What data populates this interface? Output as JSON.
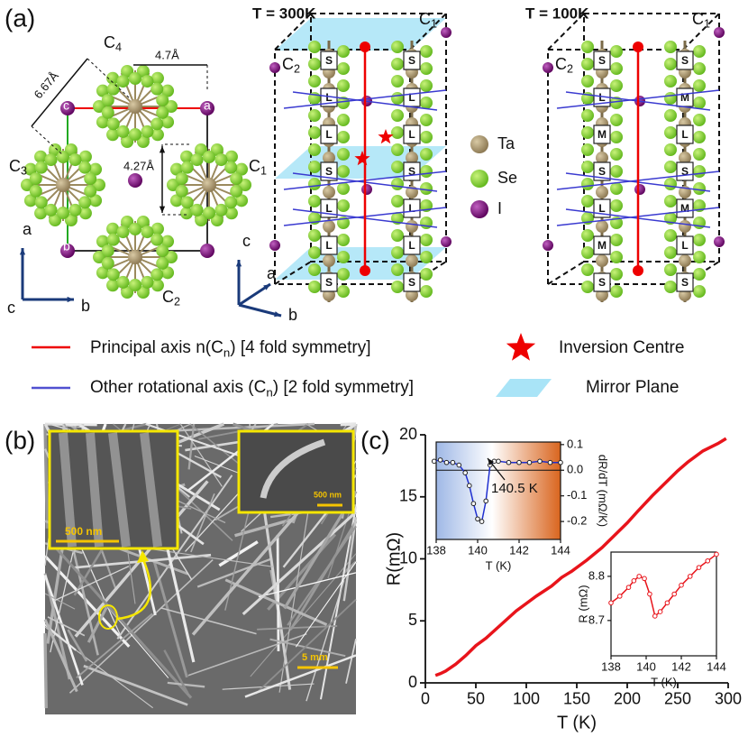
{
  "panel_a": {
    "label": "(a)",
    "left": {
      "c4": {
        "text": "C",
        "sub": "4"
      },
      "c3": {
        "text": "C",
        "sub": "3"
      },
      "c1": {
        "text": "C",
        "sub": "1"
      },
      "c2": {
        "text": "C",
        "sub": "2"
      },
      "d_b": "4.7Å",
      "d_diag": "6.67Å",
      "d_a": "4.27Å",
      "atom_c": "c",
      "atom_a": "a",
      "atom_b": "b",
      "axis_a": "a",
      "axis_b": "b",
      "axis_c": "c"
    },
    "s300": {
      "title": "T = 300K",
      "c1": {
        "text": "C",
        "sub": "1"
      },
      "c2": {
        "text": "C",
        "sub": "2"
      },
      "chains": [
        [
          "S",
          "L",
          "L",
          "S",
          "L",
          "L",
          "S"
        ],
        [
          "S",
          "L",
          "L",
          "S",
          "L",
          "L",
          "S"
        ]
      ],
      "axis_a": "a",
      "axis_b": "b",
      "axis_c": "c"
    },
    "s100": {
      "title": "T = 100K",
      "c1": {
        "text": "C",
        "sub": "1"
      },
      "c2": {
        "text": "C",
        "sub": "2"
      },
      "chains": [
        [
          "S",
          "L",
          "M",
          "S",
          "L",
          "M",
          "S"
        ],
        [
          "S",
          "M",
          "L",
          "S",
          "M",
          "L",
          "S"
        ]
      ]
    },
    "atoms": [
      "Ta",
      "Se",
      "I"
    ],
    "legend": {
      "principal": {
        "text": "Principal axis n(C",
        "sub": "n",
        "rest": ") [4 fold symmetry]"
      },
      "other": {
        "text": "Other rotational axis (C",
        "sub": "n",
        "rest": ") [2 fold symmetry]"
      },
      "inversion": "Inversion Centre",
      "mirror": "Mirror Plane"
    }
  },
  "panel_b": {
    "label": "(b)",
    "scale_inset_left": "500 nm",
    "scale_inset_right": "500 nm",
    "scale_main": "5 mm"
  },
  "panel_c": {
    "label": "(c)"
  },
  "chart_data": [
    {
      "type": "line",
      "xlabel": "T (K)",
      "ylabel": "R(mΩ)",
      "color": "#e8141b",
      "x": [
        10,
        15,
        20,
        30,
        40,
        50,
        60,
        75,
        90,
        100,
        110,
        125,
        135,
        140,
        145,
        150,
        160,
        175,
        190,
        200,
        210,
        225,
        240,
        250,
        260,
        275,
        290,
        298
      ],
      "values": [
        0.6,
        0.75,
        0.95,
        1.5,
        2.2,
        3.0,
        3.6,
        4.7,
        5.8,
        6.4,
        7.0,
        7.8,
        8.5,
        8.75,
        9.0,
        9.3,
        9.9,
        10.9,
        12.1,
        12.9,
        13.8,
        15.1,
        16.3,
        17.1,
        17.8,
        18.7,
        19.3,
        19.7
      ],
      "xlim": [
        0,
        300
      ],
      "ylim": [
        0,
        20
      ],
      "xticks": [
        0,
        50,
        100,
        150,
        200,
        250,
        300
      ],
      "yticks": [
        0,
        5,
        10,
        15,
        20
      ]
    },
    {
      "type": "line",
      "xlabel": "T (K)",
      "ylabel": "dR/dT  (mΩ/K)",
      "color": "#1f2fd0",
      "x": [
        137.9,
        138.2,
        138.5,
        138.8,
        139.1,
        139.4,
        139.6,
        139.8,
        140.0,
        140.2,
        140.4,
        140.6,
        140.8,
        141.0,
        141.5,
        142,
        142.5,
        143,
        143.5,
        144
      ],
      "values": [
        0.035,
        0.04,
        0.03,
        0.03,
        0.02,
        -0.01,
        -0.06,
        -0.13,
        -0.19,
        -0.2,
        -0.12,
        0.02,
        0.035,
        0.035,
        0.03,
        0.03,
        0.03,
        0.035,
        0.03,
        0.03
      ],
      "xlim": [
        138,
        144
      ],
      "ylim": [
        -0.27,
        0.11
      ],
      "xticks": [
        138,
        140,
        142,
        144
      ],
      "yticks": [
        0.1,
        {
          "value": 0,
          "label": "0.0"
        },
        -0.1,
        -0.2
      ],
      "annotation": "140.5 K"
    },
    {
      "type": "line",
      "xlabel": "T (K)",
      "ylabel": "R (mΩ)",
      "color": "#e8141b",
      "x": [
        138,
        138.5,
        139,
        139.3,
        139.6,
        139.9,
        140.2,
        140.5,
        140.8,
        141.2,
        141.6,
        142,
        142.5,
        143,
        143.5,
        144
      ],
      "values": [
        8.74,
        8.755,
        8.775,
        8.79,
        8.8,
        8.795,
        8.76,
        8.71,
        8.72,
        8.74,
        8.76,
        8.78,
        8.8,
        8.82,
        8.835,
        8.85
      ],
      "xlim": [
        138,
        144
      ],
      "ylim": [
        8.62,
        8.855
      ],
      "xticks": [
        138,
        140,
        142,
        144
      ],
      "yticks": [
        8.8,
        8.7
      ]
    }
  ]
}
